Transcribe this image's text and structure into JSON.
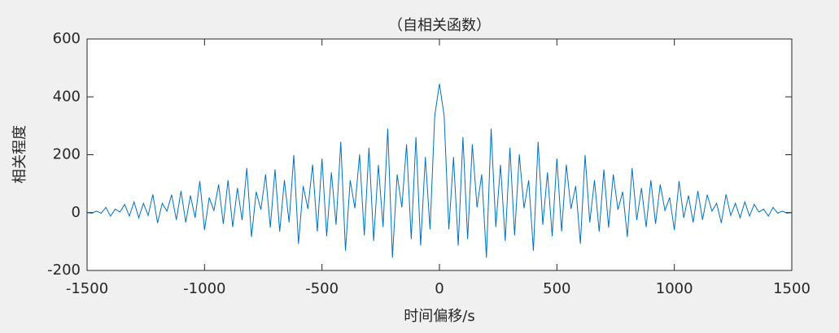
{
  "chart_data": {
    "type": "line",
    "title": "（自相关函数）",
    "xlabel": "时间偏移/s",
    "ylabel": "相关程度",
    "x": [
      -1500,
      -1480,
      -1460,
      -1440,
      -1420,
      -1400,
      -1380,
      -1360,
      -1340,
      -1320,
      -1300,
      -1280,
      -1260,
      -1240,
      -1220,
      -1200,
      -1180,
      -1160,
      -1140,
      -1120,
      -1100,
      -1080,
      -1060,
      -1040,
      -1020,
      -1000,
      -980,
      -960,
      -940,
      -920,
      -900,
      -880,
      -860,
      -840,
      -820,
      -800,
      -780,
      -760,
      -740,
      -720,
      -700,
      -680,
      -660,
      -640,
      -620,
      -600,
      -580,
      -560,
      -540,
      -520,
      -500,
      -480,
      -460,
      -440,
      -420,
      -400,
      -380,
      -360,
      -340,
      -320,
      -300,
      -280,
      -260,
      -240,
      -220,
      -200,
      -180,
      -160,
      -140,
      -120,
      -100,
      -80,
      -60,
      -40,
      -20,
      0,
      20,
      40,
      60,
      80,
      100,
      120,
      140,
      160,
      180,
      200,
      220,
      240,
      260,
      280,
      300,
      320,
      340,
      360,
      380,
      400,
      420,
      440,
      460,
      480,
      500,
      520,
      540,
      560,
      580,
      600,
      620,
      640,
      660,
      680,
      700,
      720,
      740,
      760,
      780,
      800,
      820,
      840,
      860,
      880,
      900,
      920,
      940,
      960,
      980,
      1000,
      1020,
      1040,
      1060,
      1080,
      1100,
      1120,
      1140,
      1160,
      1180,
      1200,
      1220,
      1240,
      1260,
      1280,
      1300,
      1320,
      1340,
      1360,
      1380,
      1400,
      1420,
      1440,
      1460,
      1480,
      1500
    ],
    "series": [
      {
        "name": "autocorrelation",
        "color": "#0072bd",
        "values": [
          0,
          -2,
          5,
          -2,
          18,
          -12,
          12,
          2,
          28,
          -12,
          37,
          -18,
          32,
          -10,
          63,
          -36,
          32,
          5,
          62,
          -25,
          75,
          -34,
          59,
          -18,
          109,
          -60,
          52,
          7,
          97,
          -39,
          112,
          -50,
          85,
          -26,
          154,
          -84,
          72,
          10,
          132,
          -52,
          149,
          -66,
          112,
          -34,
          199,
          -108,
          92,
          13,
          166,
          -65,
          187,
          -82,
          139,
          -42,
          245,
          -132,
          112,
          15,
          201,
          -79,
          224,
          -98,
          165,
          -50,
          290,
          -156,
          132,
          18,
          236,
          -92,
          261,
          -114,
          192,
          -58,
          335,
          445,
          335,
          -58,
          192,
          -114,
          261,
          -92,
          236,
          18,
          132,
          -156,
          290,
          -50,
          165,
          -98,
          224,
          -79,
          201,
          15,
          112,
          -132,
          245,
          -42,
          139,
          -82,
          187,
          -65,
          166,
          13,
          92,
          -108,
          199,
          -34,
          112,
          -66,
          149,
          -52,
          132,
          10,
          72,
          -84,
          154,
          -26,
          85,
          -50,
          112,
          -39,
          97,
          7,
          52,
          -60,
          109,
          -18,
          59,
          -34,
          75,
          -25,
          62,
          5,
          32,
          -36,
          63,
          -10,
          32,
          -18,
          37,
          -12,
          28,
          2,
          12,
          -12,
          18,
          -2,
          5,
          -2,
          0
        ]
      }
    ],
    "xlim": [
      -1500,
      1500
    ],
    "ylim": [
      -200,
      600
    ],
    "xticks": [
      -1500,
      -1000,
      -500,
      0,
      500,
      1000,
      1500
    ],
    "yticks": [
      -200,
      0,
      200,
      400,
      600
    ]
  }
}
